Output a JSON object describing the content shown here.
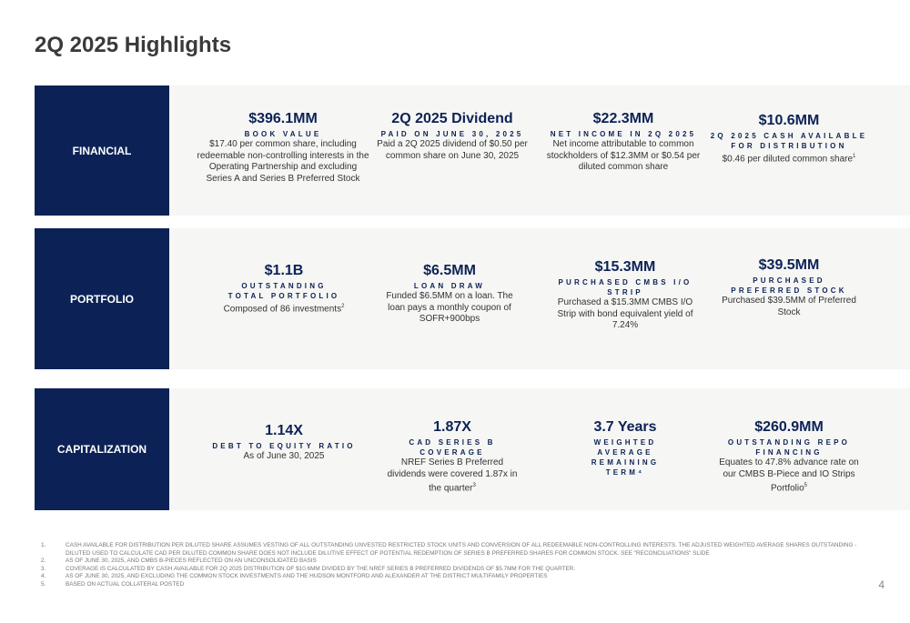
{
  "title": "2Q 2025 Highlights",
  "sections": {
    "financial": {
      "label": "FINANCIAL",
      "metrics": [
        {
          "value": "$396.1MM",
          "caption": "BOOK VALUE",
          "desc": "$17.40 per common share, including redeemable non-controlling interests in the Operating Partnership and excluding Series A and Series B Preferred Stock",
          "sup": ""
        },
        {
          "value": "2Q 2025 Dividend",
          "caption": "PAID ON JUNE 30, 2025",
          "desc": "Paid a 2Q 2025 dividend of $0.50 per common share on June 30, 2025",
          "sup": ""
        },
        {
          "value": "$22.3MM",
          "caption": "NET INCOME IN 2Q 2025",
          "desc": "Net income attributable to common stockholders of $12.3MM or $0.54 per diluted common share",
          "sup": ""
        },
        {
          "value": "$10.6MM",
          "caption": "2Q 2025 CASH AVAILABLE FOR DISTRIBUTION",
          "desc": "$0.46 per diluted common share",
          "sup": "1"
        }
      ]
    },
    "portfolio": {
      "label": "PORTFOLIO",
      "metrics": [
        {
          "value": "$1.1B",
          "caption": "OUTSTANDING TOTAL PORTFOLIO",
          "desc": "Composed of 86 investments",
          "sup": "2"
        },
        {
          "value": "$6.5MM",
          "caption": "LOAN DRAW",
          "desc": "Funded $6.5MM on a loan. The loan pays a monthly coupon of SOFR+900bps",
          "sup": ""
        },
        {
          "value": "$15.3MM",
          "caption": "PURCHASED CMBS I/O STRIP",
          "desc": "Purchased a $15.3MM CMBS I/O Strip with bond equivalent yield of 7.24%",
          "sup": ""
        },
        {
          "value": "$39.5MM",
          "caption": "PURCHASED PREFERRED STOCK",
          "desc": "Purchased $39.5MM of Preferred Stock",
          "sup": ""
        }
      ]
    },
    "capitalization": {
      "label": "CAPITALIZATION",
      "metrics": [
        {
          "value": "1.14X",
          "caption": "DEBT TO EQUITY RATIO",
          "desc": "As of June 30, 2025",
          "sup": ""
        },
        {
          "value": "1.87X",
          "caption": "CAD SERIES B COVERAGE",
          "desc": "NREF Series B Preferred dividends were covered 1.87x in the quarter",
          "sup": "3"
        },
        {
          "value": "3.7 Years",
          "caption": "WEIGHTED AVERAGE REMAINING TERM⁴",
          "desc": "",
          "sup": ""
        },
        {
          "value": "$260.9MM",
          "caption": "OUTSTANDING REPO FINANCING",
          "desc": "Equates to 47.8% advance rate on our CMBS B-Piece and IO Strips Portfolio",
          "sup": "5"
        }
      ]
    }
  },
  "footnotes": [
    {
      "num": "1.",
      "text": "CASH AVAILABLE FOR DISTRIBUTION PER DILUTED SHARE ASSUMES VESTING OF ALL OUTSTANDING UNVESTED RESTRICTED STOCK UNITS AND CONVERSION OF ALL REDEEMABLE NON-CONTROLLING INTERESTS. THE ADJUSTED WEIGHTED AVERAGE SHARES OUTSTANDING - DILUTED USED TO CALCULATE CAD PER DILUTED COMMON SHARE DOES NOT INCLUDE DILUTIVE EFFECT OF POTENTIAL REDEMPTION OF SERIES B PREFERRED SHARES FOR COMMON STOCK. SEE \"RECONCILIATIONS\" SLIDE"
    },
    {
      "num": "2.",
      "text": "AS OF JUNE 30, 2025, AND CMBS B-PIECES REFLECTED ON AN UNCONSOLIDATED BASIS"
    },
    {
      "num": "3.",
      "text": "COVERAGE IS CALCULATED BY CASH AVAILABLE FOR 2Q 2025 DISTRIBUTION OF $10.6MM DIVIDED BY THE NREF SERIES B PREFERRED DIVIDENDS OF $5.7MM FOR THE QUARTER."
    },
    {
      "num": "4.",
      "text": "AS OF JUNE 30, 2025, AND EXCLUDING THE COMMON STOCK INVESTMENTS AND THE HUDSON MONTFORD AND ALEXANDER AT THE DISTRICT MULTIFAMILY PROPERTIES"
    },
    {
      "num": "5.",
      "text": "BASED ON ACTUAL COLLATERAL POSTED"
    }
  ],
  "page_number": "4",
  "colors": {
    "navy": "#0c2256",
    "band": "#f6f6f4"
  }
}
